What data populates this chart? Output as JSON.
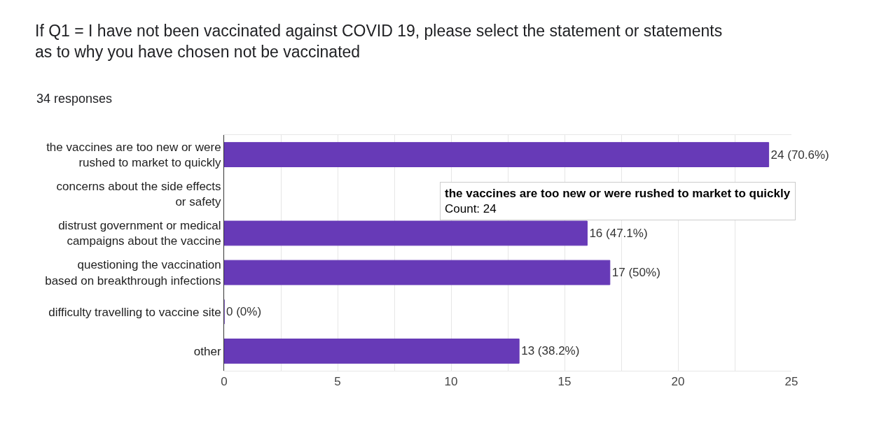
{
  "chart_data": {
    "type": "bar",
    "orientation": "horizontal",
    "title": "If Q1 = I have not been vaccinated against COVID 19, please select the statement or statements as to why you have chosen not be vaccinated",
    "subtitle": "34 responses",
    "categories": [
      "the vaccines are too new or were\nrushed to market to quickly",
      "concerns about the side effects\nor safety",
      "distrust government or medical\ncampaigns about the vaccine",
      "questioning the vaccination\nbased on breakthrough infections",
      "difficulty travelling to vaccine site",
      "other"
    ],
    "values": [
      24,
      null,
      16,
      17,
      0,
      13
    ],
    "value_labels": [
      "24 (70.6%)",
      null,
      "16 (47.1%)",
      "17 (50%)",
      "0 (0%)",
      "13 (38.2%)"
    ],
    "color": "#673ab7",
    "xlim": [
      0,
      25
    ],
    "xticks": [
      0,
      {
        "value": 2.5,
        "label": null
      },
      5,
      {
        "value": 7.5,
        "label": null
      },
      10,
      {
        "value": 12.5,
        "label": null
      },
      15,
      {
        "value": 17.5,
        "label": null
      },
      20,
      {
        "value": 22.5,
        "label": null
      },
      25
    ],
    "grid": "x",
    "annotations": [
      "the vaccines are too new or were rushed to market to quickly",
      "Count: 24"
    ]
  }
}
